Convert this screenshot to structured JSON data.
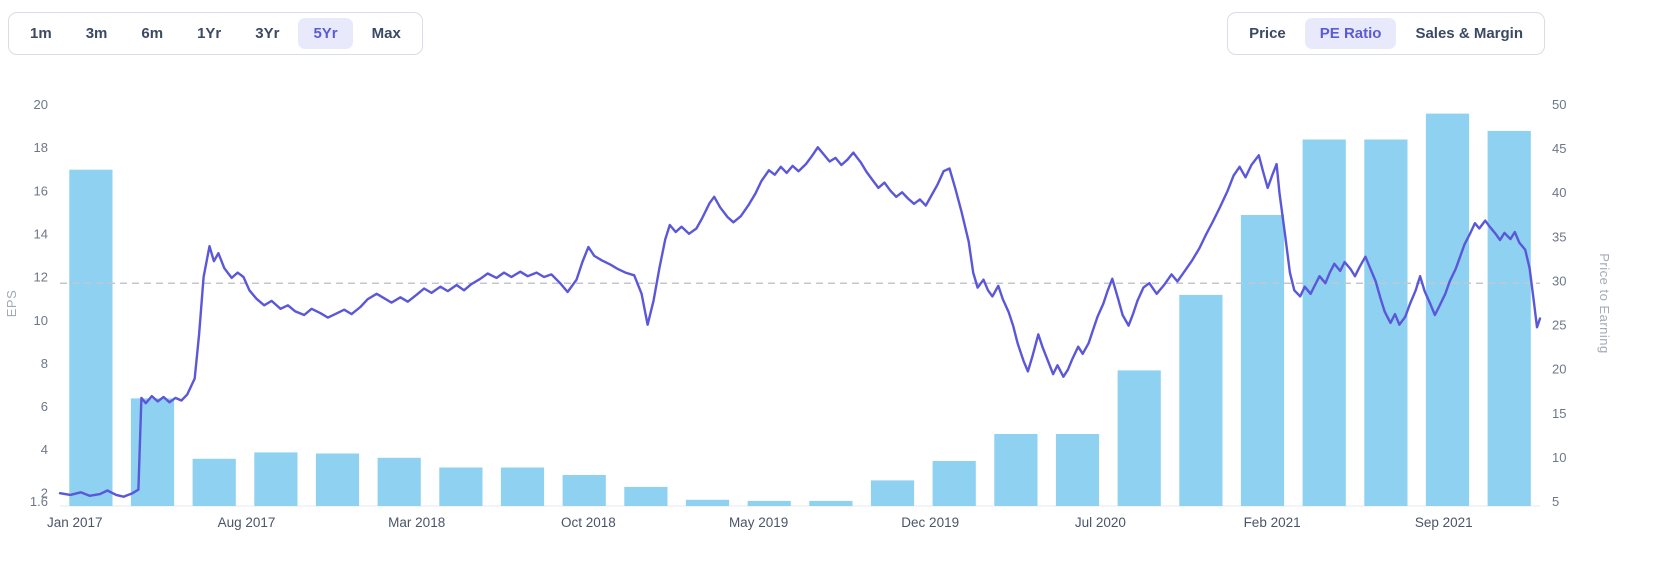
{
  "toolbar": {
    "ranges": [
      {
        "label": "1m",
        "active": false
      },
      {
        "label": "3m",
        "active": false
      },
      {
        "label": "6m",
        "active": false
      },
      {
        "label": "1Yr",
        "active": false
      },
      {
        "label": "3Yr",
        "active": false
      },
      {
        "label": "5Yr",
        "active": true
      },
      {
        "label": "Max",
        "active": false
      }
    ],
    "views": [
      {
        "label": "Price",
        "active": false
      },
      {
        "label": "PE Ratio",
        "active": true
      },
      {
        "label": "Sales & Margin",
        "active": false
      }
    ],
    "accent_color": "#5b5bd7",
    "active_bg_color": "#e9e9fc",
    "text_color": "#3c4963"
  },
  "chart_data": {
    "type": "bar",
    "subtype": "bar-line-combo",
    "title": "",
    "grid": false,
    "legend": "none",
    "x_axis": {
      "labels": [
        "Jan 2017",
        "Aug 2017",
        "Mar 2018",
        "Oct 2018",
        "May 2019",
        "Dec 2019",
        "Jul 2020",
        "Feb 2021",
        "Sep 2021"
      ],
      "label_pos_pct": [
        1.0,
        12.6,
        24.1,
        35.7,
        47.2,
        58.8,
        70.3,
        81.9,
        93.5
      ]
    },
    "y_left": {
      "title": "EPS",
      "min": 1.6,
      "max": 20,
      "ticks": [
        20,
        18,
        16,
        14,
        12,
        10,
        8,
        6,
        4,
        2,
        1.6
      ]
    },
    "y_right": {
      "title": "Price to Earning",
      "min": 5,
      "max": 50,
      "ticks": [
        50,
        45,
        40,
        35,
        30,
        25,
        20,
        15,
        10,
        5
      ]
    },
    "bars": {
      "name": "EPS (quarterly)",
      "color": "#8ed1f1",
      "values": [
        17.0,
        6.4,
        3.6,
        3.9,
        3.85,
        3.65,
        3.2,
        3.2,
        2.85,
        2.3,
        1.7,
        1.65,
        1.65,
        2.6,
        3.5,
        4.75,
        4.75,
        7.7,
        11.2,
        14.9,
        18.4,
        18.4,
        19.6,
        18.8
      ]
    },
    "avg_line": {
      "value": 29.8,
      "style": "dashed",
      "color": "#c3c7cf"
    },
    "line": {
      "name": "PE Ratio",
      "color": "#5b57d9",
      "points": [
        [
          0,
          6
        ],
        [
          0.7,
          5.8
        ],
        [
          1.4,
          6.1
        ],
        [
          2,
          5.7
        ],
        [
          2.7,
          5.9
        ],
        [
          3.2,
          6.3
        ],
        [
          3.8,
          5.8
        ],
        [
          4.3,
          5.6
        ],
        [
          4.9,
          6
        ],
        [
          5.3,
          6.4
        ],
        [
          5.5,
          16.8
        ],
        [
          5.8,
          16.2
        ],
        [
          6.2,
          17
        ],
        [
          6.6,
          16.4
        ],
        [
          7,
          16.9
        ],
        [
          7.4,
          16.3
        ],
        [
          7.8,
          16.8
        ],
        [
          8.2,
          16.5
        ],
        [
          8.6,
          17.2
        ],
        [
          9.1,
          19
        ],
        [
          9.4,
          24
        ],
        [
          9.7,
          30.5
        ],
        [
          10.1,
          34
        ],
        [
          10.4,
          32.3
        ],
        [
          10.7,
          33.2
        ],
        [
          11.1,
          31.5
        ],
        [
          11.6,
          30.4
        ],
        [
          12,
          31
        ],
        [
          12.4,
          30.5
        ],
        [
          12.8,
          29
        ],
        [
          13.3,
          28
        ],
        [
          13.8,
          27.3
        ],
        [
          14.3,
          27.8
        ],
        [
          14.9,
          26.9
        ],
        [
          15.4,
          27.3
        ],
        [
          15.9,
          26.6
        ],
        [
          16.5,
          26.2
        ],
        [
          17,
          26.9
        ],
        [
          17.6,
          26.4
        ],
        [
          18.1,
          25.9
        ],
        [
          18.6,
          26.3
        ],
        [
          19.2,
          26.8
        ],
        [
          19.7,
          26.3
        ],
        [
          20.3,
          27.1
        ],
        [
          20.8,
          28
        ],
        [
          21.4,
          28.6
        ],
        [
          21.9,
          28.1
        ],
        [
          22.4,
          27.6
        ],
        [
          23,
          28.2
        ],
        [
          23.5,
          27.7
        ],
        [
          24.1,
          28.5
        ],
        [
          24.6,
          29.2
        ],
        [
          25.1,
          28.7
        ],
        [
          25.7,
          29.4
        ],
        [
          26.2,
          28.9
        ],
        [
          26.8,
          29.6
        ],
        [
          27.3,
          29
        ],
        [
          27.8,
          29.7
        ],
        [
          28.4,
          30.3
        ],
        [
          28.9,
          30.9
        ],
        [
          29.5,
          30.4
        ],
        [
          30,
          31
        ],
        [
          30.5,
          30.5
        ],
        [
          31.1,
          31.1
        ],
        [
          31.6,
          30.6
        ],
        [
          32.2,
          31
        ],
        [
          32.7,
          30.5
        ],
        [
          33.2,
          30.8
        ],
        [
          33.8,
          29.8
        ],
        [
          34.3,
          28.8
        ],
        [
          34.9,
          30.2
        ],
        [
          35.3,
          32.2
        ],
        [
          35.7,
          33.9
        ],
        [
          36.1,
          32.9
        ],
        [
          36.6,
          32.4
        ],
        [
          37.2,
          31.9
        ],
        [
          37.7,
          31.4
        ],
        [
          38.2,
          31
        ],
        [
          38.8,
          30.7
        ],
        [
          39.3,
          28.6
        ],
        [
          39.7,
          25.1
        ],
        [
          40.1,
          27.8
        ],
        [
          40.5,
          31.5
        ],
        [
          40.9,
          34.8
        ],
        [
          41.2,
          36.4
        ],
        [
          41.6,
          35.6
        ],
        [
          42,
          36.2
        ],
        [
          42.5,
          35.4
        ],
        [
          43,
          36
        ],
        [
          43.4,
          37.2
        ],
        [
          43.9,
          38.9
        ],
        [
          44.2,
          39.6
        ],
        [
          44.6,
          38.4
        ],
        [
          45.1,
          37.3
        ],
        [
          45.5,
          36.7
        ],
        [
          46,
          37.4
        ],
        [
          46.5,
          38.6
        ],
        [
          47,
          40
        ],
        [
          47.4,
          41.4
        ],
        [
          47.9,
          42.6
        ],
        [
          48.3,
          42.1
        ],
        [
          48.7,
          43
        ],
        [
          49.1,
          42.3
        ],
        [
          49.5,
          43.1
        ],
        [
          49.9,
          42.5
        ],
        [
          50.4,
          43.3
        ],
        [
          50.8,
          44.2
        ],
        [
          51.2,
          45.2
        ],
        [
          51.6,
          44.4
        ],
        [
          52,
          43.6
        ],
        [
          52.4,
          44
        ],
        [
          52.8,
          43.2
        ],
        [
          53.2,
          43.8
        ],
        [
          53.6,
          44.6
        ],
        [
          54.1,
          43.5
        ],
        [
          54.5,
          42.4
        ],
        [
          54.9,
          41.5
        ],
        [
          55.3,
          40.6
        ],
        [
          55.7,
          41.2
        ],
        [
          56.1,
          40.3
        ],
        [
          56.5,
          39.6
        ],
        [
          56.9,
          40.1
        ],
        [
          57.3,
          39.4
        ],
        [
          57.7,
          38.8
        ],
        [
          58.1,
          39.3
        ],
        [
          58.5,
          38.6
        ],
        [
          58.9,
          39.8
        ],
        [
          59.3,
          41
        ],
        [
          59.7,
          42.5
        ],
        [
          60.1,
          42.8
        ],
        [
          60.5,
          40.5
        ],
        [
          60.9,
          38
        ],
        [
          61.4,
          34.5
        ],
        [
          61.7,
          31
        ],
        [
          62,
          29.3
        ],
        [
          62.4,
          30.2
        ],
        [
          62.7,
          29
        ],
        [
          63,
          28.3
        ],
        [
          63.4,
          29.5
        ],
        [
          63.7,
          28
        ],
        [
          64.1,
          26.5
        ],
        [
          64.4,
          25
        ],
        [
          64.7,
          23
        ],
        [
          65.1,
          21
        ],
        [
          65.4,
          19.8
        ],
        [
          65.7,
          21.5
        ],
        [
          66.1,
          24
        ],
        [
          66.4,
          22.5
        ],
        [
          66.8,
          20.8
        ],
        [
          67.1,
          19.5
        ],
        [
          67.4,
          20.5
        ],
        [
          67.8,
          19.2
        ],
        [
          68.1,
          20
        ],
        [
          68.4,
          21.2
        ],
        [
          68.8,
          22.6
        ],
        [
          69.1,
          21.8
        ],
        [
          69.5,
          23
        ],
        [
          69.8,
          24.5
        ],
        [
          70.1,
          26
        ],
        [
          70.5,
          27.5
        ],
        [
          70.8,
          29
        ],
        [
          71.1,
          30.3
        ],
        [
          71.5,
          28
        ],
        [
          71.8,
          26.2
        ],
        [
          72.2,
          25
        ],
        [
          72.5,
          26.3
        ],
        [
          72.8,
          27.8
        ],
        [
          73.2,
          29.3
        ],
        [
          73.6,
          29.8
        ],
        [
          74.1,
          28.6
        ],
        [
          74.6,
          29.6
        ],
        [
          75.1,
          30.8
        ],
        [
          75.5,
          30
        ],
        [
          76,
          31.2
        ],
        [
          76.5,
          32.4
        ],
        [
          77,
          33.8
        ],
        [
          77.4,
          35.2
        ],
        [
          77.9,
          36.8
        ],
        [
          78.4,
          38.5
        ],
        [
          78.9,
          40.3
        ],
        [
          79.3,
          42
        ],
        [
          79.7,
          43
        ],
        [
          80.1,
          41.8
        ],
        [
          80.5,
          43.2
        ],
        [
          81,
          44.3
        ],
        [
          81.3,
          42.4
        ],
        [
          81.6,
          40.6
        ],
        [
          81.9,
          42
        ],
        [
          82.2,
          43.3
        ],
        [
          82.4,
          40
        ],
        [
          82.8,
          35
        ],
        [
          83.1,
          31
        ],
        [
          83.4,
          29
        ],
        [
          83.8,
          28.3
        ],
        [
          84.1,
          29.4
        ],
        [
          84.5,
          28.6
        ],
        [
          84.8,
          29.6
        ],
        [
          85.1,
          30.6
        ],
        [
          85.5,
          29.8
        ],
        [
          85.8,
          31
        ],
        [
          86.1,
          32
        ],
        [
          86.5,
          31.2
        ],
        [
          86.8,
          32.2
        ],
        [
          87.2,
          31.4
        ],
        [
          87.5,
          30.6
        ],
        [
          87.8,
          31.6
        ],
        [
          88.2,
          32.8
        ],
        [
          88.5,
          31.6
        ],
        [
          88.9,
          30
        ],
        [
          89.2,
          28.2
        ],
        [
          89.5,
          26.6
        ],
        [
          89.9,
          25.3
        ],
        [
          90.2,
          26.3
        ],
        [
          90.5,
          25.1
        ],
        [
          90.9,
          26
        ],
        [
          91.2,
          27.4
        ],
        [
          91.6,
          29
        ],
        [
          91.9,
          30.6
        ],
        [
          92.2,
          28.9
        ],
        [
          92.6,
          27.4
        ],
        [
          92.9,
          26.2
        ],
        [
          93.2,
          27.2
        ],
        [
          93.6,
          28.6
        ],
        [
          93.9,
          30
        ],
        [
          94.3,
          31.4
        ],
        [
          94.6,
          32.8
        ],
        [
          94.9,
          34.2
        ],
        [
          95.3,
          35.5
        ],
        [
          95.6,
          36.6
        ],
        [
          95.9,
          36
        ],
        [
          96.3,
          36.9
        ],
        [
          96.6,
          36.2
        ],
        [
          97,
          35.4
        ],
        [
          97.3,
          34.7
        ],
        [
          97.6,
          35.5
        ],
        [
          98,
          34.8
        ],
        [
          98.3,
          35.6
        ],
        [
          98.6,
          34.4
        ],
        [
          99,
          33.6
        ],
        [
          99.3,
          31.5
        ],
        [
          99.6,
          27.5
        ],
        [
          99.8,
          24.8
        ],
        [
          100,
          25.8
        ]
      ]
    }
  }
}
